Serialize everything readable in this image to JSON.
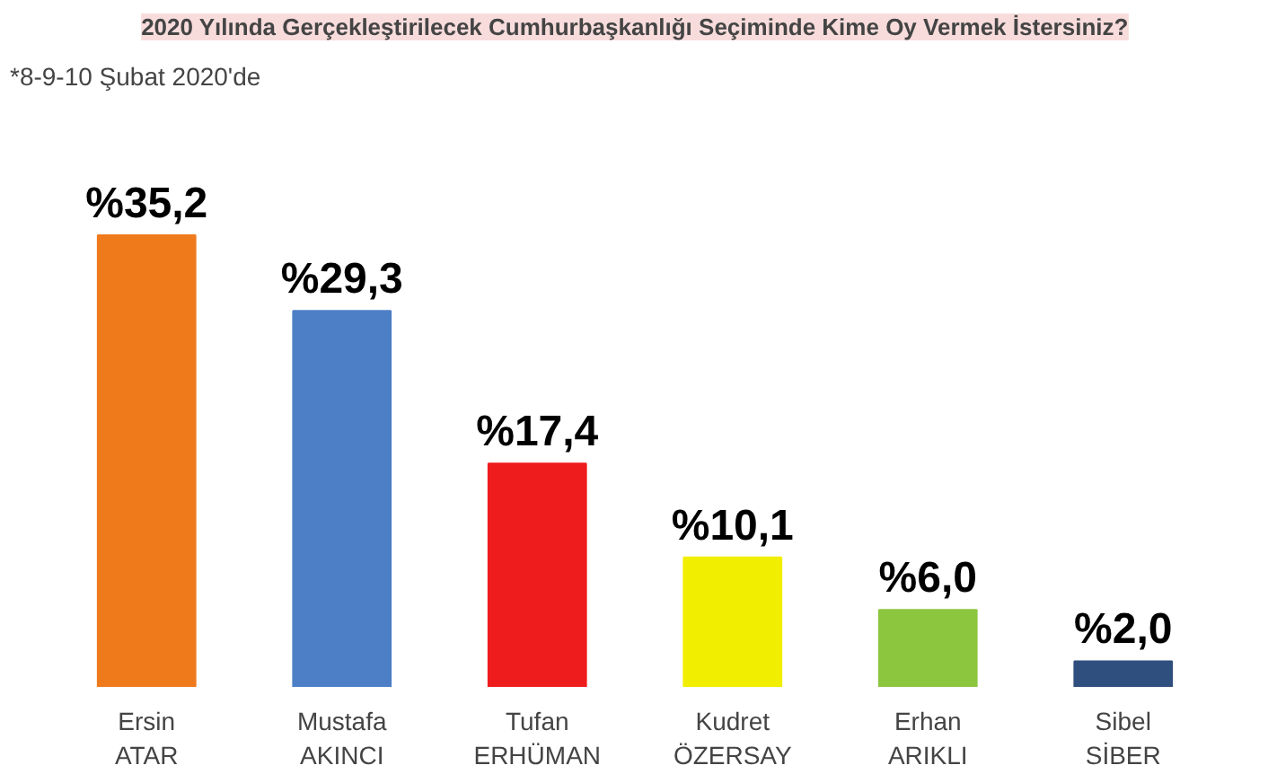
{
  "chart_data": {
    "type": "bar",
    "title": "2020 Yılında Gerçekleştirilecek Cumhurbaşkanlığı Seçiminde Kime Oy Vermek İstersiniz?",
    "subtitle": "*8-9-10 Şubat 2020'de",
    "categories": [
      "Ersin\nATAR",
      "Mustafa\nAKINCI",
      "Tufan\nERHÜMAN",
      "Kudret\nÖZERSAY",
      "Erhan\nARIKLI",
      "Sibel\nSİBER"
    ],
    "values": [
      35.2,
      29.3,
      17.4,
      10.1,
      6.0,
      2.0
    ],
    "value_labels": [
      "%35,2",
      "%29,3",
      "%17,4",
      "%10,1",
      "%6,0",
      "%2,0"
    ],
    "colors": [
      "#ef7a1c",
      "#4d7fc6",
      "#ee1c1c",
      "#f2ee00",
      "#8cc63f",
      "#2f4f7f"
    ],
    "grid": false
  }
}
